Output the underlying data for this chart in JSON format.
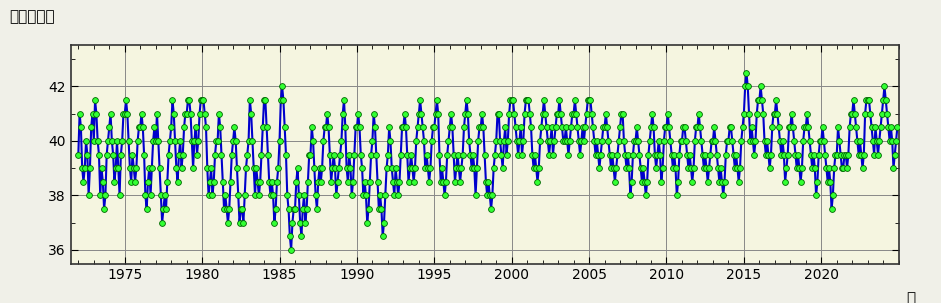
{
  "ylabel": "北緯（度）",
  "xlabel_end": "年",
  "xlim": [
    1971.5,
    2025.0
  ],
  "ylim": [
    35.5,
    43.5
  ],
  "yticks": [
    36,
    38,
    40,
    42
  ],
  "xticks": [
    1975,
    1980,
    1985,
    1990,
    1995,
    2000,
    2005,
    2010,
    2015,
    2020
  ],
  "line_color": "#0000cc",
  "marker_facecolor": "#33ff33",
  "marker_edgecolor": "#006600",
  "bg_color": "#f0f0e8",
  "plot_bg_color": "#f5f5e0",
  "line_width": 1.5,
  "marker_size": 5,
  "monthly_data": {
    "1972": [
      39.5,
      41.0,
      40.5,
      39.0,
      38.5,
      39.0,
      40.0,
      39.5,
      38.0,
      39.0,
      40.5,
      41.0
    ],
    "1973": [
      40.0,
      41.5,
      41.0,
      40.0,
      39.5,
      38.0,
      39.0,
      38.5,
      37.5,
      38.0,
      39.5,
      40.0
    ],
    "1974": [
      40.5,
      41.0,
      40.0,
      39.5,
      38.5,
      39.0,
      40.0,
      39.0,
      38.0,
      39.5,
      40.0,
      41.0
    ],
    "1975": [
      41.0,
      41.5,
      41.0,
      40.0,
      39.0,
      38.5,
      39.5,
      39.0,
      38.5,
      39.0,
      40.0,
      40.5
    ],
    "1976": [
      40.5,
      41.0,
      40.5,
      39.5,
      38.0,
      37.5,
      38.5,
      39.0,
      38.0,
      39.0,
      40.0,
      40.5
    ],
    "1977": [
      40.0,
      41.0,
      40.0,
      39.0,
      38.0,
      37.0,
      37.5,
      38.0,
      37.5,
      38.5,
      39.5,
      40.0
    ],
    "1978": [
      40.5,
      41.5,
      41.0,
      40.0,
      39.0,
      38.5,
      39.5,
      40.0,
      39.0,
      39.5,
      40.5,
      41.0
    ],
    "1979": [
      41.0,
      41.5,
      41.5,
      41.0,
      40.0,
      39.0,
      40.0,
      40.5,
      39.5,
      40.0,
      41.0,
      41.5
    ],
    "1980": [
      41.5,
      41.5,
      41.0,
      40.5,
      39.0,
      38.0,
      38.5,
      39.0,
      38.0,
      38.5,
      39.5,
      40.0
    ],
    "1981": [
      40.0,
      41.0,
      40.5,
      39.5,
      38.5,
      37.5,
      38.0,
      37.5,
      37.0,
      37.5,
      38.5,
      39.5
    ],
    "1982": [
      40.0,
      40.5,
      40.0,
      39.0,
      38.0,
      37.0,
      37.5,
      37.5,
      37.0,
      38.0,
      39.0,
      39.5
    ],
    "1983": [
      40.0,
      41.5,
      41.0,
      40.0,
      39.0,
      38.0,
      39.0,
      38.5,
      38.0,
      38.5,
      39.5,
      40.5
    ],
    "1984": [
      41.5,
      41.5,
      40.5,
      39.5,
      38.5,
      38.0,
      38.5,
      38.0,
      37.0,
      37.5,
      38.5,
      39.0
    ],
    "1985": [
      40.0,
      41.5,
      42.0,
      41.5,
      40.5,
      39.5,
      38.0,
      37.5,
      36.5,
      36.0,
      37.0,
      37.5
    ],
    "1986": [
      37.5,
      38.5,
      39.0,
      38.0,
      37.0,
      36.5,
      37.5,
      38.0,
      37.0,
      37.5,
      38.5,
      39.5
    ],
    "1987": [
      39.5,
      40.5,
      40.0,
      39.0,
      38.0,
      37.5,
      38.5,
      39.0,
      38.5,
      39.0,
      40.0,
      40.5
    ],
    "1988": [
      40.5,
      41.0,
      40.5,
      39.5,
      38.5,
      39.0,
      39.5,
      39.0,
      38.0,
      38.5,
      39.0,
      39.5
    ],
    "1989": [
      40.0,
      41.0,
      41.5,
      40.5,
      39.0,
      38.5,
      39.5,
      39.0,
      38.0,
      38.5,
      39.5,
      40.5
    ],
    "1990": [
      40.5,
      41.0,
      40.5,
      39.5,
      39.0,
      38.0,
      38.5,
      38.0,
      37.0,
      37.5,
      38.5,
      39.5
    ],
    "1991": [
      40.0,
      41.0,
      40.5,
      39.5,
      38.5,
      37.5,
      38.0,
      37.5,
      36.5,
      37.0,
      38.0,
      39.0
    ],
    "1992": [
      39.5,
      40.5,
      40.0,
      39.0,
      38.5,
      38.0,
      39.0,
      38.5,
      38.0,
      38.5,
      39.5,
      40.5
    ],
    "1993": [
      40.5,
      41.0,
      40.5,
      39.5,
      38.5,
      39.0,
      39.5,
      39.0,
      38.5,
      39.0,
      40.0,
      40.5
    ],
    "1994": [
      41.0,
      41.5,
      41.0,
      40.5,
      40.0,
      39.0,
      39.5,
      39.0,
      38.5,
      39.0,
      40.0,
      40.5
    ],
    "1995": [
      40.5,
      41.0,
      41.5,
      41.0,
      39.5,
      38.5,
      39.0,
      38.5,
      38.0,
      38.5,
      39.5,
      40.0
    ],
    "1996": [
      40.5,
      41.0,
      40.5,
      39.5,
      38.5,
      39.0,
      39.5,
      39.0,
      38.5,
      39.0,
      39.5,
      40.5
    ],
    "1997": [
      41.0,
      41.5,
      41.0,
      40.0,
      39.5,
      39.0,
      39.5,
      39.0,
      38.0,
      39.0,
      40.0,
      40.5
    ],
    "1998": [
      40.5,
      41.0,
      40.5,
      39.5,
      38.5,
      38.0,
      38.5,
      38.0,
      37.5,
      38.0,
      39.0,
      39.5
    ],
    "1999": [
      40.0,
      41.0,
      41.0,
      40.0,
      39.5,
      39.0,
      40.0,
      40.5,
      39.5,
      40.0,
      41.0,
      41.5
    ],
    "2000": [
      41.5,
      41.5,
      41.0,
      40.5,
      40.0,
      39.5,
      40.0,
      40.5,
      39.5,
      40.0,
      41.0,
      41.5
    ],
    "2001": [
      41.5,
      41.5,
      41.0,
      40.5,
      39.5,
      39.0,
      39.5,
      39.0,
      38.5,
      39.0,
      40.0,
      40.5
    ],
    "2002": [
      41.0,
      41.5,
      41.0,
      40.5,
      40.0,
      39.5,
      40.0,
      40.5,
      39.5,
      40.0,
      40.5,
      41.0
    ],
    "2003": [
      41.0,
      41.5,
      41.0,
      40.5,
      40.0,
      40.0,
      40.5,
      40.0,
      39.5,
      40.0,
      40.5,
      41.0
    ],
    "2004": [
      41.0,
      41.5,
      41.0,
      40.5,
      40.0,
      39.5,
      40.0,
      40.5,
      40.0,
      40.5,
      41.0,
      41.5
    ],
    "2005": [
      41.5,
      41.5,
      41.0,
      40.5,
      40.0,
      39.5,
      40.0,
      39.5,
      39.0,
      39.5,
      40.0,
      40.5
    ],
    "2006": [
      40.5,
      41.0,
      40.5,
      40.0,
      39.5,
      39.0,
      39.5,
      39.0,
      38.5,
      39.0,
      39.5,
      40.0
    ],
    "2007": [
      40.5,
      41.0,
      41.0,
      40.0,
      39.5,
      39.0,
      39.5,
      39.0,
      38.0,
      38.5,
      39.5,
      40.0
    ],
    "2008": [
      40.0,
      40.5,
      40.0,
      39.5,
      39.0,
      38.5,
      39.0,
      38.5,
      38.0,
      38.5,
      39.5,
      40.0
    ],
    "2009": [
      40.5,
      41.0,
      40.5,
      39.5,
      39.0,
      39.5,
      40.0,
      39.5,
      38.5,
      39.0,
      40.0,
      40.5
    ],
    "2010": [
      40.5,
      41.0,
      40.5,
      40.0,
      39.5,
      39.0,
      39.5,
      39.0,
      38.0,
      38.5,
      39.5,
      40.0
    ],
    "2011": [
      40.0,
      40.5,
      40.5,
      40.0,
      39.5,
      39.0,
      39.5,
      39.0,
      38.5,
      39.0,
      40.0,
      40.5
    ],
    "2012": [
      40.5,
      41.0,
      40.5,
      40.0,
      39.5,
      39.0,
      39.5,
      39.0,
      38.5,
      39.0,
      39.5,
      40.0
    ],
    "2013": [
      40.0,
      40.5,
      40.0,
      39.5,
      39.0,
      38.5,
      39.0,
      38.5,
      38.0,
      38.5,
      39.5,
      40.0
    ],
    "2014": [
      40.0,
      40.5,
      40.5,
      40.0,
      39.5,
      39.0,
      39.5,
      39.0,
      38.5,
      39.0,
      40.0,
      40.5
    ],
    "2015": [
      41.0,
      42.0,
      42.5,
      42.0,
      41.0,
      40.0,
      40.5,
      40.0,
      39.5,
      40.0,
      41.0,
      41.5
    ],
    "2016": [
      41.5,
      42.0,
      41.5,
      41.0,
      40.0,
      39.5,
      40.0,
      39.5,
      39.0,
      39.5,
      40.5,
      41.0
    ],
    "2017": [
      41.0,
      41.5,
      41.0,
      40.5,
      40.0,
      39.5,
      40.0,
      39.5,
      38.5,
      39.0,
      39.5,
      40.5
    ],
    "2018": [
      40.5,
      41.0,
      40.5,
      40.0,
      39.5,
      39.0,
      39.5,
      39.0,
      38.5,
      39.0,
      40.0,
      40.5
    ],
    "2019": [
      40.5,
      41.0,
      40.5,
      40.0,
      39.5,
      39.0,
      39.5,
      39.0,
      38.0,
      38.5,
      39.5,
      40.0
    ],
    "2020": [
      40.0,
      40.5,
      40.0,
      39.5,
      39.0,
      38.5,
      39.0,
      38.5,
      37.5,
      38.0,
      39.0,
      39.5
    ],
    "2021": [
      39.5,
      40.5,
      40.0,
      39.5,
      39.0,
      39.0,
      39.5,
      39.5,
      39.0,
      39.5,
      40.5,
      41.0
    ],
    "2022": [
      41.0,
      41.5,
      41.0,
      40.5,
      40.0,
      39.5,
      40.0,
      39.5,
      39.0,
      39.5,
      41.0,
      41.5
    ],
    "2023": [
      41.5,
      41.5,
      41.0,
      40.5,
      40.0,
      39.5,
      40.5,
      40.0,
      39.5,
      40.0,
      40.5,
      41.0
    ],
    "2024": [
      41.5,
      42.0,
      41.5,
      41.0,
      40.5,
      40.0,
      40.5,
      40.0,
      39.0,
      39.5,
      40.0,
      40.5
    ]
  }
}
